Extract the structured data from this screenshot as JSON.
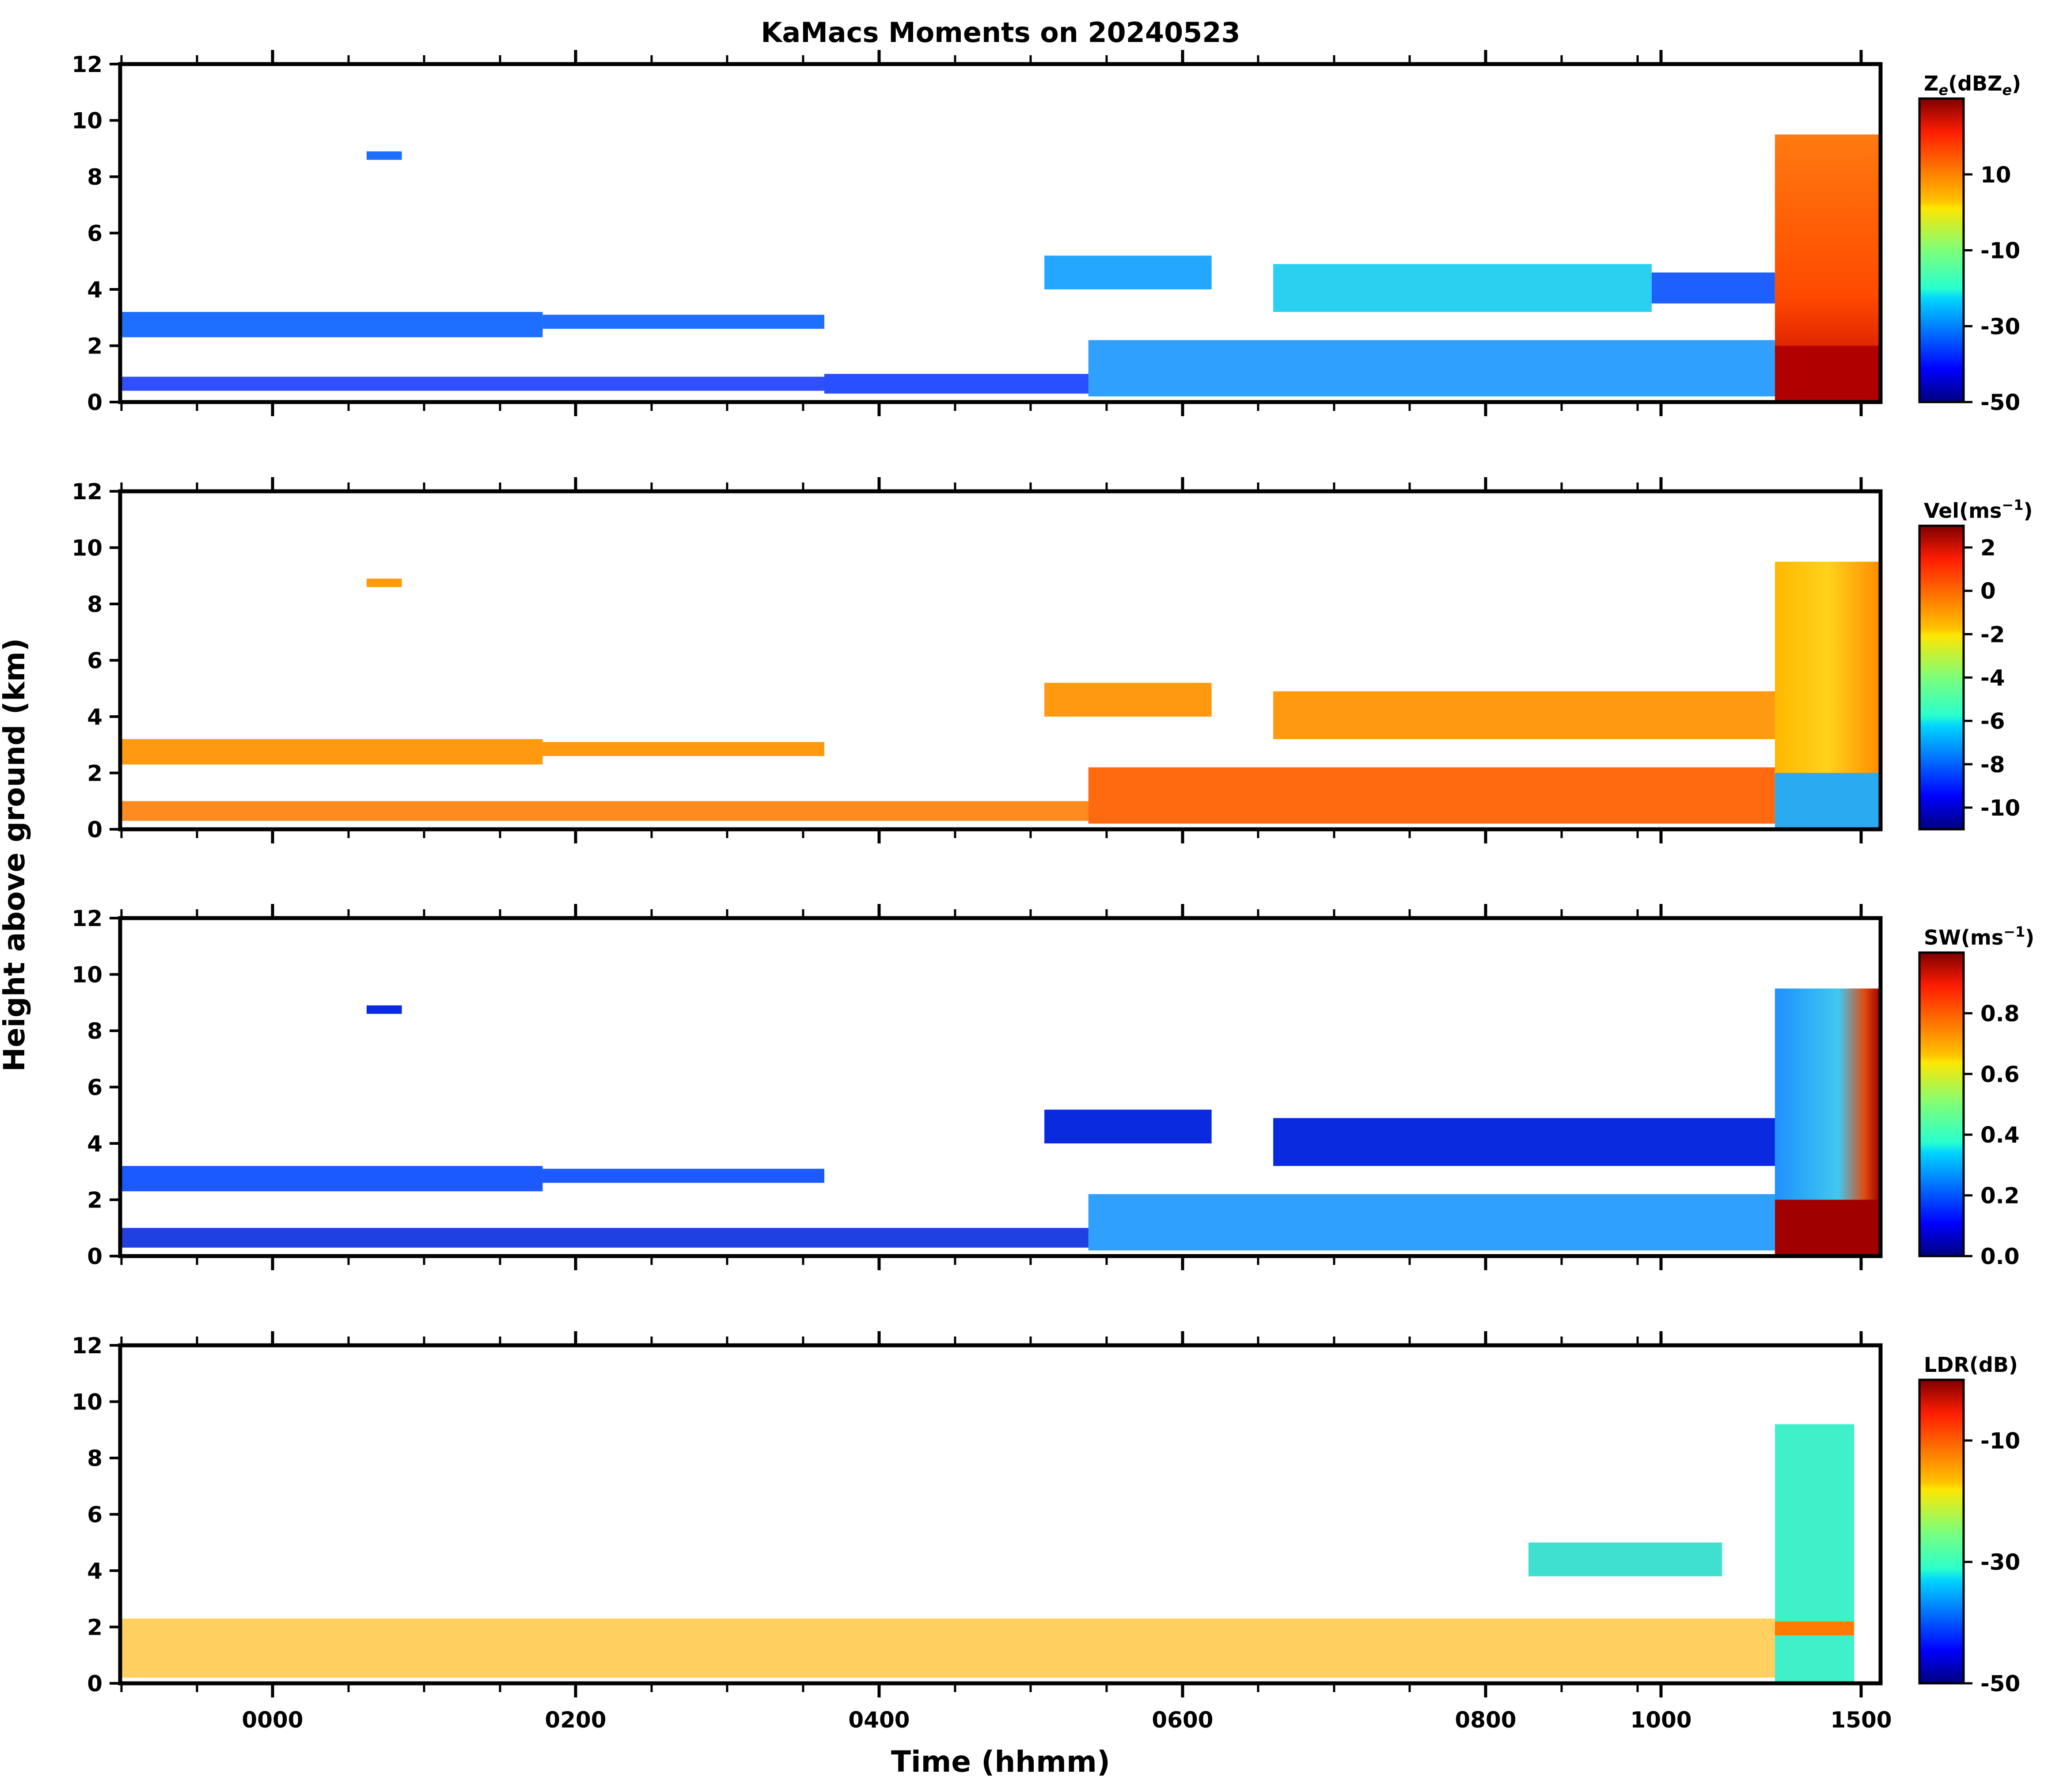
{
  "chart_data": {
    "type": "heatmap",
    "title": "KaMacs Moments on 20240523",
    "xlabel": "Time (hhmm)",
    "ylabel": "Height above ground (km)",
    "x_tick_labels": [
      "0000",
      "0200",
      "0400",
      "0600",
      "0800",
      "1000",
      "1500"
    ],
    "y_ticks": [
      0,
      2,
      4,
      6,
      8,
      10,
      12
    ],
    "ylim": [
      0,
      12
    ],
    "grid": false,
    "colormap": "jet",
    "panels": [
      {
        "name": "reflectivity",
        "colorbar_label_main": "Z",
        "colorbar_label_sub": "e",
        "colorbar_label_unit_pre": "(dBZ",
        "colorbar_label_unit_sub": "e",
        "colorbar_label_unit_post": ")",
        "clim": [
          -50,
          30
        ],
        "colorbar_ticks": [
          10,
          -10,
          -30,
          -50
        ]
      },
      {
        "name": "velocity",
        "colorbar_label_main": "Vel(ms",
        "colorbar_label_sup": "−1",
        "colorbar_label_post": ")",
        "clim": [
          -11,
          3
        ],
        "colorbar_ticks": [
          2,
          0,
          -2,
          -4,
          -6,
          -8,
          -10
        ]
      },
      {
        "name": "spectrum-width",
        "colorbar_label_main": "SW(ms",
        "colorbar_label_sup": "−1",
        "colorbar_label_post": ")",
        "clim": [
          0,
          1
        ],
        "colorbar_ticks": [
          "0.8",
          "0.6",
          "0.4",
          "0.2",
          "0.0"
        ]
      },
      {
        "name": "ldr",
        "colorbar_label_main": "LDR(dB)",
        "clim": [
          -50,
          0
        ],
        "colorbar_ticks": [
          -10,
          -30,
          -50
        ]
      }
    ]
  }
}
